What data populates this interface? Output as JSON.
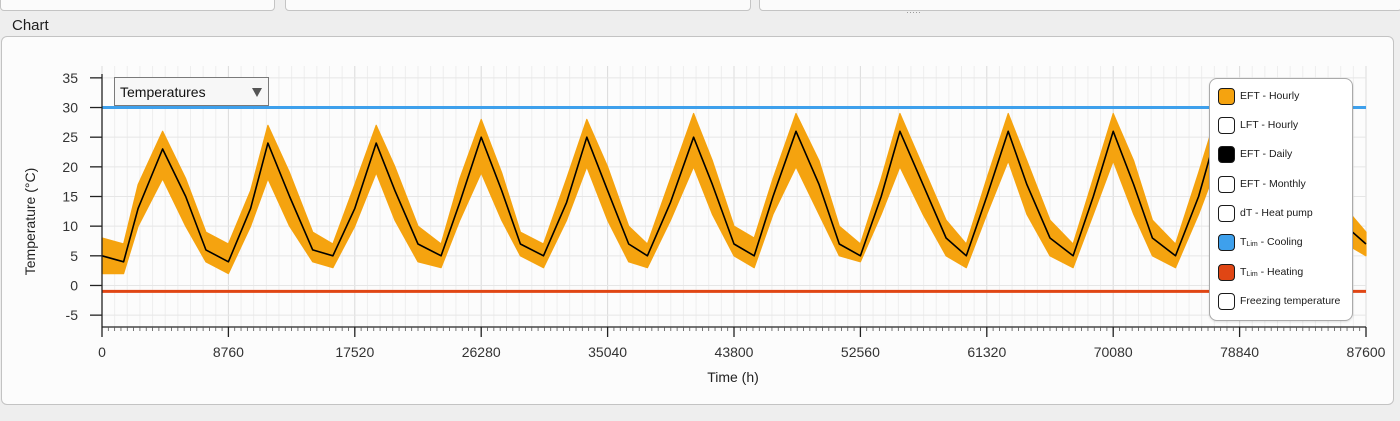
{
  "section": {
    "label": "Chart"
  },
  "selector": {
    "value": "Temperatures"
  },
  "legend": {
    "items": [
      {
        "name": "EFT - Hourly",
        "label": "EFT - Hourly",
        "fill": "#f5a30f",
        "checked": true
      },
      {
        "name": "LFT - Hourly",
        "label": "LFT - Hourly",
        "fill": "#ffffff",
        "checked": false
      },
      {
        "name": "EFT - Daily",
        "label": "EFT - Daily",
        "fill": "#000000",
        "checked": true
      },
      {
        "name": "EFT - Monthly",
        "label": "EFT - Monthly",
        "fill": "#ffffff",
        "checked": false
      },
      {
        "name": "dT - Heat pump",
        "label": "dT - Heat pump",
        "fill": "#ffffff",
        "checked": false
      },
      {
        "name": "TLim - Cooling",
        "label_main": "T",
        "label_sub": "Lim",
        "label_rest": " - Cooling",
        "fill": "#3ea0ec",
        "checked": true
      },
      {
        "name": "TLim - Heating",
        "label_main": "T",
        "label_sub": "Lim",
        "label_rest": " - Heating",
        "fill": "#e04614",
        "checked": true
      },
      {
        "name": "Freezing temperature",
        "label": "Freezing temperature",
        "fill": "#ffffff",
        "checked": false
      }
    ]
  },
  "chart_data": {
    "type": "line",
    "xlabel": "Time (h)",
    "ylabel": "Temperature (°C)",
    "xlim": [
      0,
      87600
    ],
    "ylim": [
      -7,
      37
    ],
    "x_ticks": [
      0,
      8760,
      17520,
      26280,
      35040,
      43800,
      52560,
      61320,
      70080,
      78840,
      87600
    ],
    "y_ticks": [
      -5,
      0,
      5,
      10,
      15,
      20,
      25,
      30,
      35
    ],
    "grid": true,
    "legend_position": "top-right",
    "series": [
      {
        "name": "EFT - Hourly",
        "color": "#f5a30f",
        "note_range_band": true,
        "x": [
          0,
          1500,
          2500,
          4200,
          5800,
          7200,
          8760,
          10300,
          11500,
          13000,
          14600,
          16000,
          17520,
          19000,
          20300,
          21900,
          23500,
          24800,
          26280,
          27700,
          29000,
          30600,
          32200,
          33600,
          35040,
          36500,
          37800,
          39400,
          41000,
          42300,
          43800,
          45200,
          46500,
          48100,
          49700,
          51100,
          52560,
          54000,
          55300,
          56900,
          58500,
          59900,
          61320,
          62800,
          64100,
          65700,
          67300,
          68700,
          70080,
          71500,
          72800,
          74400,
          76000,
          77400,
          78840,
          80300,
          81600,
          83200,
          84800,
          86200,
          87600
        ],
        "upper": [
          8,
          7,
          17,
          26,
          18,
          9,
          7,
          16,
          27,
          19,
          9,
          7,
          17,
          27,
          20,
          10,
          7,
          18,
          28,
          19,
          9,
          7,
          18,
          28,
          20,
          10,
          7,
          18,
          29,
          21,
          10,
          8,
          18,
          29,
          21,
          10,
          7,
          18,
          29,
          20,
          11,
          7,
          18,
          29,
          21,
          11,
          7,
          18,
          29,
          21,
          11,
          7,
          19,
          30,
          22,
          11,
          8,
          19,
          30,
          13,
          9
        ],
        "lower": [
          2,
          2,
          10,
          18,
          10,
          4,
          2,
          10,
          18,
          10,
          4,
          3,
          10,
          19,
          11,
          4,
          3,
          11,
          19,
          11,
          5,
          3,
          11,
          20,
          11,
          4,
          3,
          11,
          20,
          12,
          5,
          3,
          12,
          20,
          12,
          5,
          4,
          12,
          20,
          12,
          5,
          3,
          12,
          21,
          12,
          5,
          3,
          12,
          21,
          12,
          5,
          3,
          12,
          21,
          13,
          5,
          4,
          13,
          21,
          7,
          5
        ]
      },
      {
        "name": "EFT - Daily",
        "color": "#000000",
        "x": [
          0,
          1500,
          2500,
          4200,
          5800,
          7200,
          8760,
          10300,
          11500,
          13000,
          14600,
          16000,
          17520,
          19000,
          20300,
          21900,
          23500,
          24800,
          26280,
          27700,
          29000,
          30600,
          32200,
          33600,
          35040,
          36500,
          37800,
          39400,
          41000,
          42300,
          43800,
          45200,
          46500,
          48100,
          49700,
          51100,
          52560,
          54000,
          55300,
          56900,
          58500,
          59900,
          61320,
          62800,
          64100,
          65700,
          67300,
          68700,
          70080,
          71500,
          72800,
          74400,
          76000,
          77400,
          78840,
          80300,
          81600,
          83200,
          84800,
          86200,
          87600
        ],
        "y": [
          5,
          4,
          13,
          23,
          15,
          6,
          4,
          13,
          24,
          15,
          6,
          5,
          13,
          24,
          16,
          7,
          5,
          14,
          25,
          16,
          7,
          5,
          14,
          25,
          16,
          7,
          5,
          14,
          25,
          17,
          7,
          5,
          15,
          26,
          17,
          7,
          5,
          15,
          26,
          17,
          8,
          5,
          15,
          26,
          17,
          8,
          5,
          15,
          26,
          17,
          8,
          5,
          15,
          27,
          18,
          8,
          6,
          16,
          27,
          10,
          7
        ]
      },
      {
        "name": "TLim - Cooling",
        "color": "#3ea0ec",
        "x": [
          0,
          87600
        ],
        "y": [
          30,
          30
        ]
      },
      {
        "name": "TLim - Heating",
        "color": "#e04614",
        "x": [
          0,
          87600
        ],
        "y": [
          -1,
          -1
        ]
      }
    ]
  }
}
